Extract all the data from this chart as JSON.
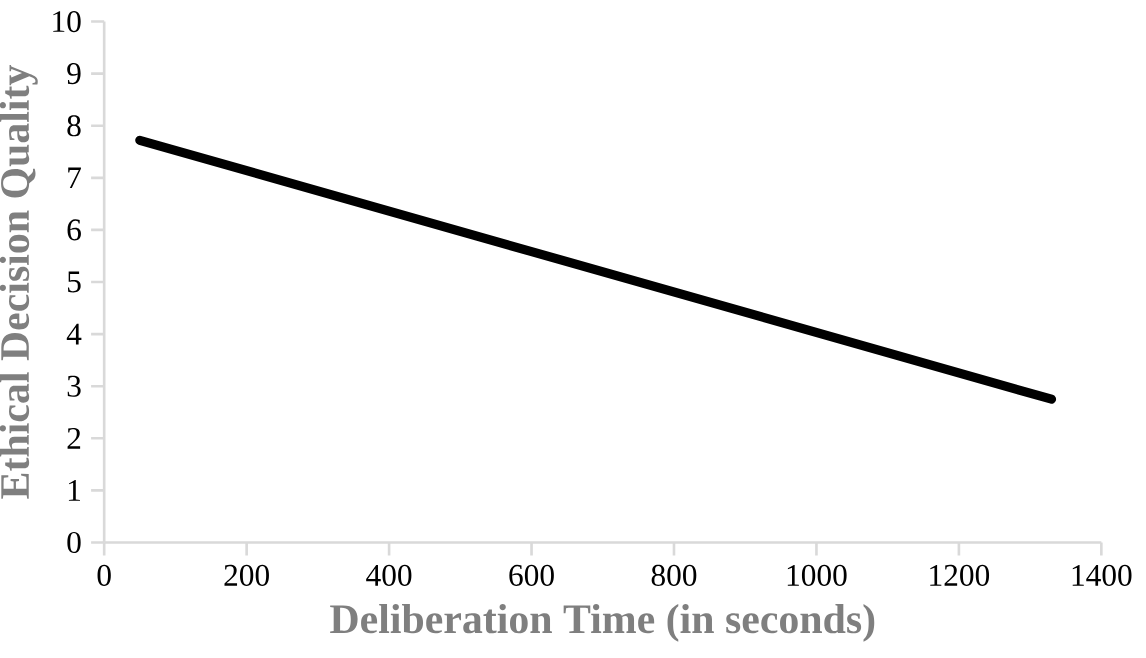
{
  "chart_data": {
    "type": "line",
    "xlabel": "Deliberation Time (in seconds)",
    "ylabel": "Ethical Decision Quality",
    "x": [
      50,
      1330
    ],
    "series": [
      {
        "color": "#000000",
        "values": [
          7.72,
          2.75
        ]
      }
    ],
    "xlim": [
      0,
      1400
    ],
    "xticks": [
      0,
      200,
      400,
      600,
      800,
      1000,
      1200,
      1400
    ],
    "ylim": [
      0,
      10
    ],
    "yticks": [
      0,
      1,
      2,
      3,
      4,
      5,
      6,
      7,
      8,
      9,
      10
    ],
    "grid": false,
    "marker": "none",
    "line_style": "solid"
  }
}
